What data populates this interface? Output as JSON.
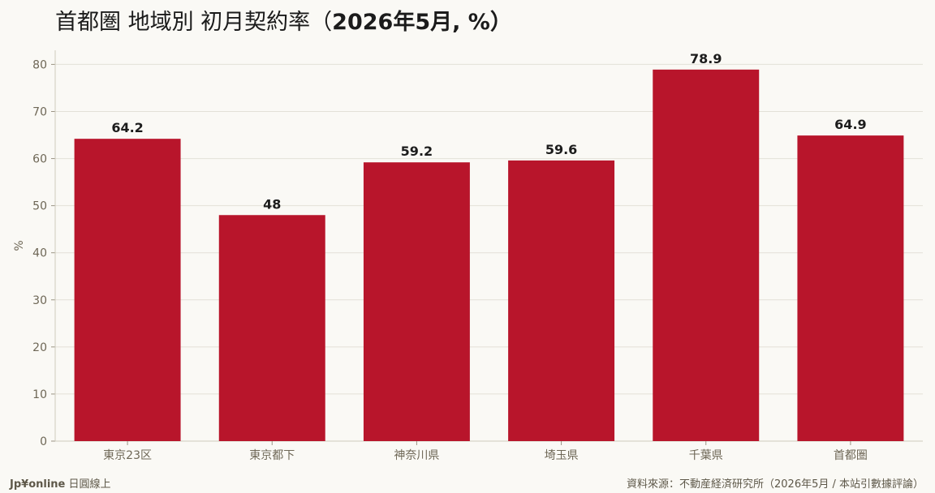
{
  "title": {
    "prefix": "首都圏 地域別 初月契約率（",
    "date": "2026年5月",
    "suffix": ", %）"
  },
  "footer": {
    "brand": "Jp¥online",
    "brand_tagline": "日圓線上",
    "source": "資料來源：不動産経済研究所（2026年5月 / 本站引數據評論）"
  },
  "colors": {
    "bar": "#b8152b",
    "background": "#faf9f5",
    "grid": "#e3e0d8",
    "axis_text": "#6e6756"
  },
  "chart_data": {
    "type": "bar",
    "categories": [
      "東京23区",
      "東京都下",
      "神奈川県",
      "埼玉県",
      "千葉県",
      "首都圏"
    ],
    "values": [
      64.2,
      48,
      59.2,
      59.6,
      78.9,
      64.9
    ],
    "value_labels": [
      "64.2",
      "48",
      "59.2",
      "59.6",
      "78.9",
      "64.9"
    ],
    "ylabel": "%",
    "xlabel": "",
    "ylim": [
      0,
      83
    ],
    "yticks": [
      0,
      10,
      20,
      30,
      40,
      50,
      60,
      70,
      80
    ],
    "grid": true,
    "legend": "none"
  }
}
